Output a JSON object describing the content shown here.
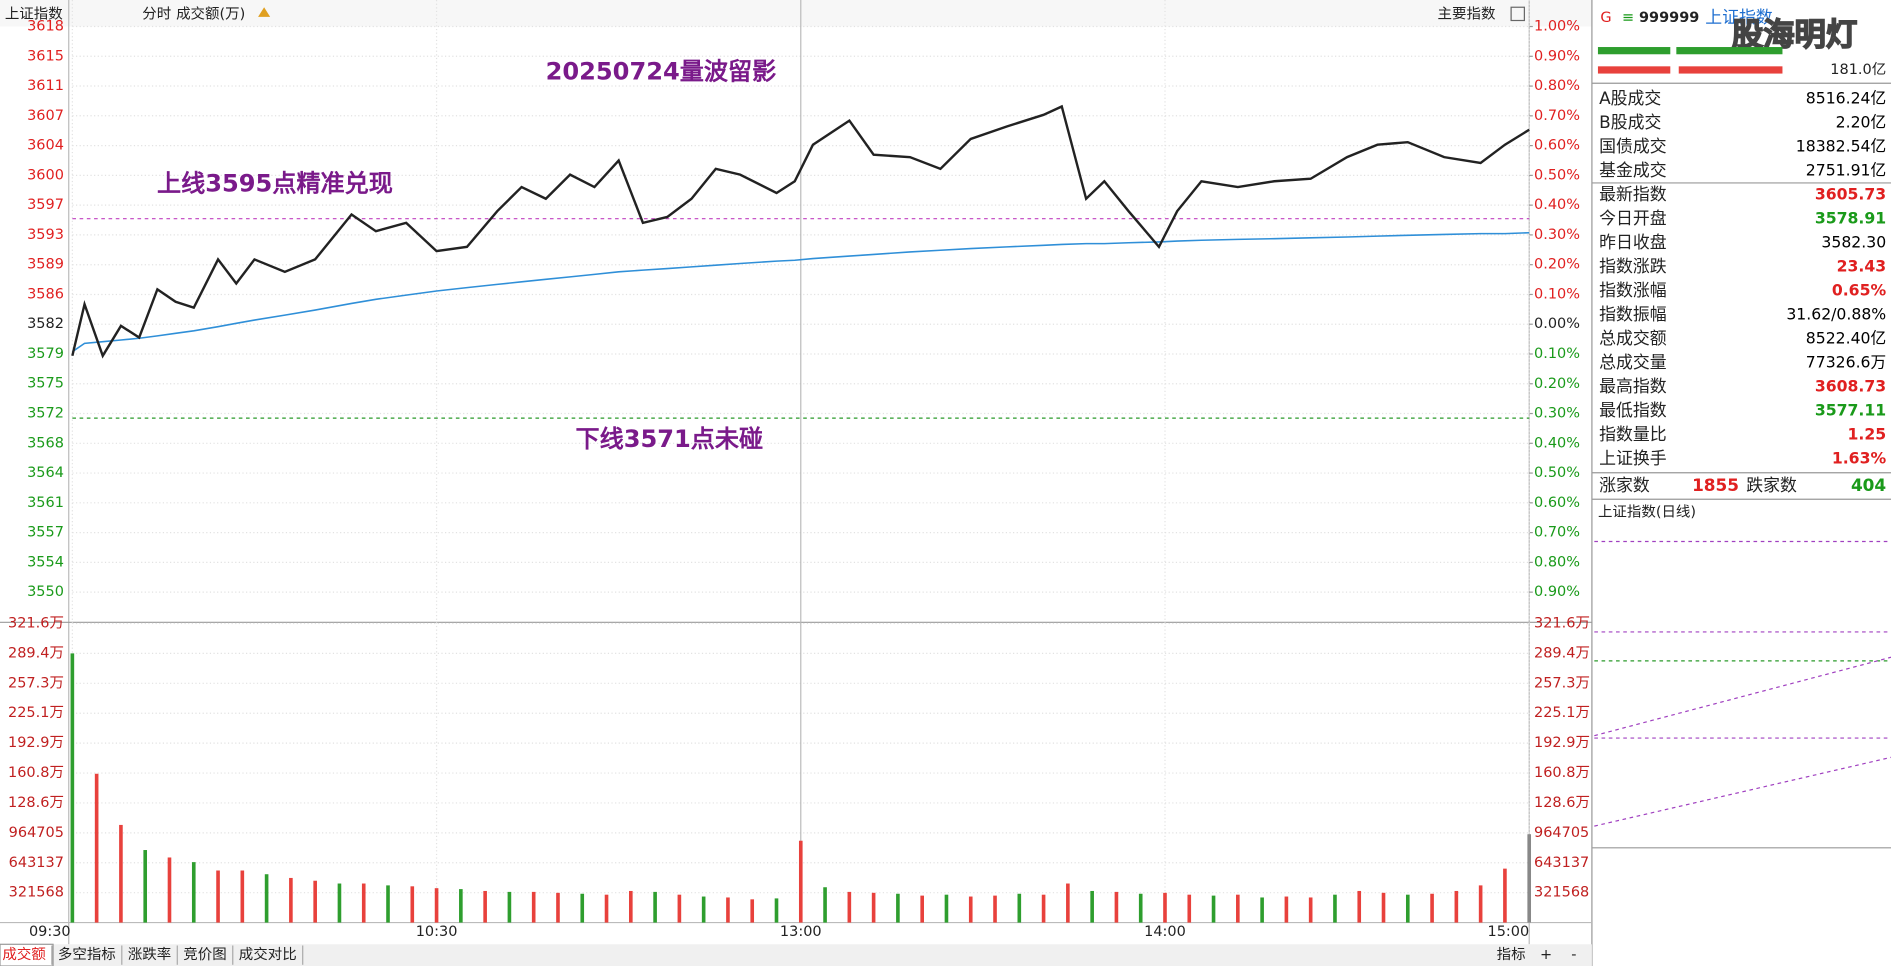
{
  "header": {
    "title": "上证指数",
    "mode": "分时",
    "unit": "成交额(万)",
    "menu": "主要指数"
  },
  "tabs": [
    "成交额",
    "多空指标",
    "涨跌率",
    "竞价图",
    "成交对比"
  ],
  "tool": "指标",
  "panel": {
    "code_prefix": "G",
    "code": "999999",
    "name": "上证指数",
    "watermark": "股海明灯",
    "bar_value": "181.0亿",
    "rows": [
      {
        "label": "A股成交",
        "value": "8516.24亿",
        "color": "#000000"
      },
      {
        "label": "B股成交",
        "value": "2.20亿",
        "color": "#000000"
      },
      {
        "label": "国债成交",
        "value": "18382.54亿",
        "color": "#000000"
      },
      {
        "label": "基金成交",
        "value": "2751.91亿",
        "color": "#000000"
      },
      {
        "label": "最新指数",
        "value": "3605.73",
        "color": "#e02020"
      },
      {
        "label": "今日开盘",
        "value": "3578.91",
        "color": "#1a9a1a"
      },
      {
        "label": "昨日收盘",
        "value": "3582.30",
        "color": "#000000"
      },
      {
        "label": "指数涨跌",
        "value": "23.43",
        "color": "#e02020"
      },
      {
        "label": "指数涨幅",
        "value": "0.65%",
        "color": "#e02020"
      },
      {
        "label": "指数振幅",
        "value": "31.62/0.88%",
        "color": "#000000"
      },
      {
        "label": "总成交额",
        "value": "8522.40亿",
        "color": "#000000"
      },
      {
        "label": "总成交量",
        "value": "77326.6万",
        "color": "#000000"
      },
      {
        "label": "最高指数",
        "value": "3608.73",
        "color": "#e02020"
      },
      {
        "label": "最低指数",
        "value": "3577.11",
        "color": "#1a9a1a"
      },
      {
        "label": "指数量比",
        "value": "1.25",
        "color": "#e02020"
      },
      {
        "label": "上证换手",
        "value": "1.63%",
        "color": "#e02020"
      }
    ],
    "breadth": {
      "up_label": "涨家数",
      "up": "1855",
      "down_label": "跌家数",
      "down": "404"
    },
    "daily_title": "上证指数(日线)"
  },
  "chart_data": [
    {
      "type": "line",
      "annotations": [
        "20250724量波留影",
        "上线3595点精准兑现",
        "下线3571点未碰"
      ],
      "hlines": [
        {
          "value": 3595,
          "color": "#c040c0"
        },
        {
          "value": 3571,
          "color": "#2a9a2a"
        }
      ],
      "xlim": [
        0,
        240
      ],
      "x": [
        0,
        2,
        5,
        8,
        11,
        14,
        17,
        20,
        24,
        27,
        30,
        35,
        40,
        46,
        50,
        55,
        60,
        65,
        70,
        74,
        78,
        82,
        86,
        90,
        94,
        98,
        102,
        106,
        110,
        116,
        119,
        122,
        128,
        132,
        138,
        143,
        148,
        154,
        160,
        163,
        167,
        170,
        174,
        179,
        182,
        186,
        192,
        198,
        204,
        210,
        215,
        220,
        226,
        232,
        236,
        240
      ],
      "series": [
        {
          "color": "#222222",
          "values": [
            3578.5,
            3584.7,
            3578.5,
            3582.1,
            3580.7,
            3586.5,
            3585.0,
            3584.3,
            3590.1,
            3587.2,
            3590.1,
            3588.6,
            3590.1,
            3595.5,
            3593.5,
            3594.5,
            3591.1,
            3591.6,
            3595.9,
            3598.8,
            3597.4,
            3600.3,
            3598.8,
            3602.0,
            3594.5,
            3595.2,
            3597.4,
            3601.0,
            3600.3,
            3598.1,
            3599.5,
            3603.9,
            3606.8,
            3602.7,
            3602.4,
            3601.0,
            3604.6,
            3606.1,
            3607.5,
            3608.5,
            3597.4,
            3599.5,
            3595.9,
            3591.6,
            3595.9,
            3599.5,
            3598.8,
            3599.5,
            3599.8,
            3602.4,
            3603.9,
            3604.2,
            3602.4,
            3601.7,
            3603.9,
            3605.7
          ]
        },
        {
          "color": "#2f8fd8",
          "values": [
            3579.0,
            3580.0,
            3580.2,
            3580.4,
            3580.6,
            3580.9,
            3581.2,
            3581.5,
            3582.0,
            3582.4,
            3582.8,
            3583.4,
            3584.0,
            3584.8,
            3585.3,
            3585.8,
            3586.3,
            3586.7,
            3587.1,
            3587.4,
            3587.7,
            3588.0,
            3588.3,
            3588.6,
            3588.8,
            3589.0,
            3589.2,
            3589.4,
            3589.6,
            3589.9,
            3590.0,
            3590.2,
            3590.5,
            3590.7,
            3591.0,
            3591.2,
            3591.4,
            3591.6,
            3591.8,
            3591.9,
            3592.0,
            3592.0,
            3592.1,
            3592.2,
            3592.3,
            3592.4,
            3592.5,
            3592.6,
            3592.7,
            3592.8,
            3592.9,
            3593.0,
            3593.1,
            3593.2,
            3593.2,
            3593.3
          ]
        }
      ],
      "ylim": [
        3550.06,
        3618.12
      ],
      "yticks": [
        {
          "value": 3618.12,
          "label": "3618"
        },
        {
          "value": 3614.54,
          "label": "3615"
        },
        {
          "value": 3610.96,
          "label": "3611"
        },
        {
          "value": 3607.38,
          "label": "3607"
        },
        {
          "value": 3603.79,
          "label": "3604"
        },
        {
          "value": 3600.21,
          "label": "3600"
        },
        {
          "value": 3596.63,
          "label": "3597"
        },
        {
          "value": 3593.05,
          "label": "3593"
        },
        {
          "value": 3589.46,
          "label": "3589"
        },
        {
          "value": 3585.88,
          "label": "3586"
        },
        {
          "value": 3582.3,
          "label": "3582"
        },
        {
          "value": 3578.72,
          "label": "3579"
        },
        {
          "value": 3575.14,
          "label": "3575"
        },
        {
          "value": 3571.56,
          "label": "3572"
        },
        {
          "value": 3567.97,
          "label": "3568"
        },
        {
          "value": 3564.39,
          "label": "3564"
        },
        {
          "value": 3560.81,
          "label": "3561"
        },
        {
          "value": 3557.22,
          "label": "3557"
        },
        {
          "value": 3553.64,
          "label": "3554"
        },
        {
          "value": 3550.06,
          "label": "3550"
        }
      ],
      "y2lim": [
        -0.9,
        1.0
      ],
      "y2ticks": [
        {
          "value": 1.0,
          "label": "1.00%"
        },
        {
          "value": 0.9,
          "label": "0.90%"
        },
        {
          "value": 0.8,
          "label": "0.80%"
        },
        {
          "value": 0.7,
          "label": "0.70%"
        },
        {
          "value": 0.6,
          "label": "0.60%"
        },
        {
          "value": 0.5,
          "label": "0.50%"
        },
        {
          "value": 0.4,
          "label": "0.40%"
        },
        {
          "value": 0.3,
          "label": "0.30%"
        },
        {
          "value": 0.2,
          "label": "0.20%"
        },
        {
          "value": 0.1,
          "label": "0.10%"
        },
        {
          "value": 0,
          "label": "0.00%"
        },
        {
          "value": -0.1,
          "label": "0.10%"
        },
        {
          "value": -0.2,
          "label": "0.20%"
        },
        {
          "value": -0.3,
          "label": "0.30%"
        },
        {
          "value": -0.4,
          "label": "0.40%"
        },
        {
          "value": -0.5,
          "label": "0.50%"
        },
        {
          "value": -0.6,
          "label": "0.60%"
        },
        {
          "value": -0.7,
          "label": "0.70%"
        },
        {
          "value": -0.8,
          "label": "0.80%"
        },
        {
          "value": -0.9,
          "label": "0.90%"
        }
      ],
      "grid": true
    },
    {
      "type": "bar",
      "xlim": [
        0,
        240
      ],
      "xticks": [
        {
          "value": 0,
          "label": "09:30"
        },
        {
          "value": 60,
          "label": "10:30"
        },
        {
          "value": 120,
          "label": "13:00"
        },
        {
          "value": 180,
          "label": "14:00"
        },
        {
          "value": 240,
          "label": "15:00"
        }
      ],
      "x": [
        0,
        4,
        8,
        12,
        16,
        20,
        24,
        28,
        32,
        36,
        40,
        44,
        48,
        52,
        56,
        60,
        64,
        68,
        72,
        76,
        80,
        84,
        88,
        92,
        96,
        100,
        104,
        108,
        112,
        116,
        120,
        124,
        128,
        132,
        136,
        140,
        144,
        148,
        152,
        156,
        160,
        164,
        168,
        172,
        176,
        180,
        184,
        188,
        192,
        196,
        200,
        204,
        208,
        212,
        216,
        220,
        224,
        228,
        232,
        236,
        240
      ],
      "values": [
        2894112,
        1600000,
        1050000,
        780000,
        700000,
        650000,
        560000,
        560000,
        520000,
        480000,
        450000,
        420000,
        420000,
        400000,
        390000,
        370000,
        360000,
        340000,
        330000,
        330000,
        320000,
        310000,
        300000,
        340000,
        330000,
        300000,
        280000,
        270000,
        250000,
        260000,
        880000,
        380000,
        330000,
        320000,
        310000,
        290000,
        300000,
        280000,
        290000,
        310000,
        300000,
        420000,
        340000,
        330000,
        310000,
        320000,
        300000,
        290000,
        300000,
        270000,
        280000,
        270000,
        300000,
        340000,
        320000,
        300000,
        310000,
        340000,
        400000,
        580000,
        950000
      ],
      "colors": [
        "#2e9e2e",
        "#e8413c",
        "#e8413c",
        "#2e9e2e",
        "#e8413c",
        "#2e9e2e",
        "#e8413c",
        "#e8413c",
        "#2e9e2e",
        "#e8413c",
        "#e8413c",
        "#2e9e2e",
        "#e8413c",
        "#2e9e2e",
        "#e8413c",
        "#e8413c",
        "#2e9e2e",
        "#e8413c",
        "#2e9e2e",
        "#e8413c",
        "#e8413c",
        "#2e9e2e",
        "#e8413c",
        "#e8413c",
        "#2e9e2e",
        "#e8413c",
        "#2e9e2e",
        "#e8413c",
        "#e8413c",
        "#2e9e2e",
        "#e8413c",
        "#2e9e2e",
        "#e8413c",
        "#e8413c",
        "#2e9e2e",
        "#e8413c",
        "#2e9e2e",
        "#e8413c",
        "#e8413c",
        "#2e9e2e",
        "#e8413c",
        "#e8413c",
        "#2e9e2e",
        "#e8413c",
        "#2e9e2e",
        "#e8413c",
        "#e8413c",
        "#2e9e2e",
        "#e8413c",
        "#2e9e2e",
        "#e8413c",
        "#e8413c",
        "#2e9e2e",
        "#e8413c",
        "#e8413c",
        "#2e9e2e",
        "#e8413c",
        "#e8413c",
        "#e8413c",
        "#e8413c",
        "#888888"
      ],
      "ylim": [
        0,
        3215680
      ],
      "yticks": [
        321568,
        643137,
        964705,
        {
          "value": 1286272,
          "label": "128.6万"
        },
        {
          "value": 1607840,
          "label": "160.8万"
        },
        {
          "value": 1929408,
          "label": "192.9万"
        },
        {
          "value": 2250976,
          "label": "225.1万"
        },
        {
          "value": 2572544,
          "label": "257.3万"
        },
        {
          "value": 2894112,
          "label": "289.4万"
        },
        {
          "value": 3215680,
          "label": "321.6万"
        }
      ],
      "grid": true
    }
  ]
}
